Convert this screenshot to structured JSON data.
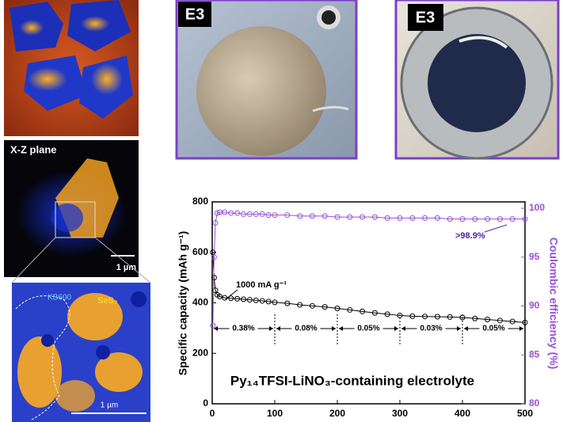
{
  "images": {
    "xz_label": "X-Z plane",
    "scale_top": "1 µm",
    "kb_label": "KB600",
    "ses_label": "SeS₂",
    "scale_bottom": "1 µm",
    "photo_left_label": "E3",
    "photo_right_label": "E3"
  },
  "chart_data": {
    "type": "scatter",
    "y_label": "Specific capacity (mAh g⁻¹)",
    "y2_label": "Coulombic efficiency (%)",
    "annotations": {
      "rate": "1000 mA g⁻¹",
      "ce": ">98.9%",
      "electrolyte": "Py₁₄TFSI-LiNO₃-containing electrolyte"
    },
    "segment_labels": [
      "0.38%",
      "0.08%",
      "0.05%",
      "0.03%",
      "0.05%"
    ],
    "dividers": [
      100,
      200,
      300,
      400
    ],
    "x": [
      1,
      3,
      5,
      8,
      12,
      20,
      30,
      40,
      50,
      60,
      70,
      80,
      90,
      100,
      120,
      140,
      160,
      180,
      200,
      220,
      240,
      260,
      280,
      300,
      320,
      340,
      360,
      380,
      400,
      420,
      440,
      460,
      480,
      500
    ],
    "series": [
      {
        "name": "Specific capacity",
        "color": "#000000",
        "values": [
          600,
          500,
          450,
          432,
          425,
          420,
          418,
          416,
          414,
          412,
          410,
          408,
          405,
          402,
          398,
          392,
          388,
          384,
          378,
          372,
          366,
          360,
          355,
          350,
          347,
          346,
          345,
          344,
          342,
          338,
          334,
          330,
          326,
          322
        ]
      },
      {
        "name": "Coulombic efficiency",
        "color": "#9b4fd6",
        "axis": "y2",
        "values": [
          88,
          95,
          98.5,
          99.5,
          99.6,
          99.6,
          99.5,
          99.5,
          99.4,
          99.4,
          99.4,
          99.4,
          99.3,
          99.3,
          99.3,
          99.2,
          99.2,
          99.2,
          99.1,
          99.1,
          99.1,
          99.1,
          99.0,
          99.0,
          99.0,
          99.0,
          99.0,
          98.9,
          98.9,
          98.9,
          98.9,
          98.9,
          98.9,
          98.9
        ]
      }
    ],
    "xlim": [
      0,
      500
    ],
    "xticks": [
      0,
      100,
      200,
      300,
      400,
      500
    ],
    "ylim": [
      0,
      800
    ],
    "yticks": [
      0,
      200,
      400,
      600,
      800
    ],
    "y2lim": [
      80,
      100.65
    ],
    "y2ticks": [
      80,
      85,
      90,
      95,
      100
    ]
  }
}
